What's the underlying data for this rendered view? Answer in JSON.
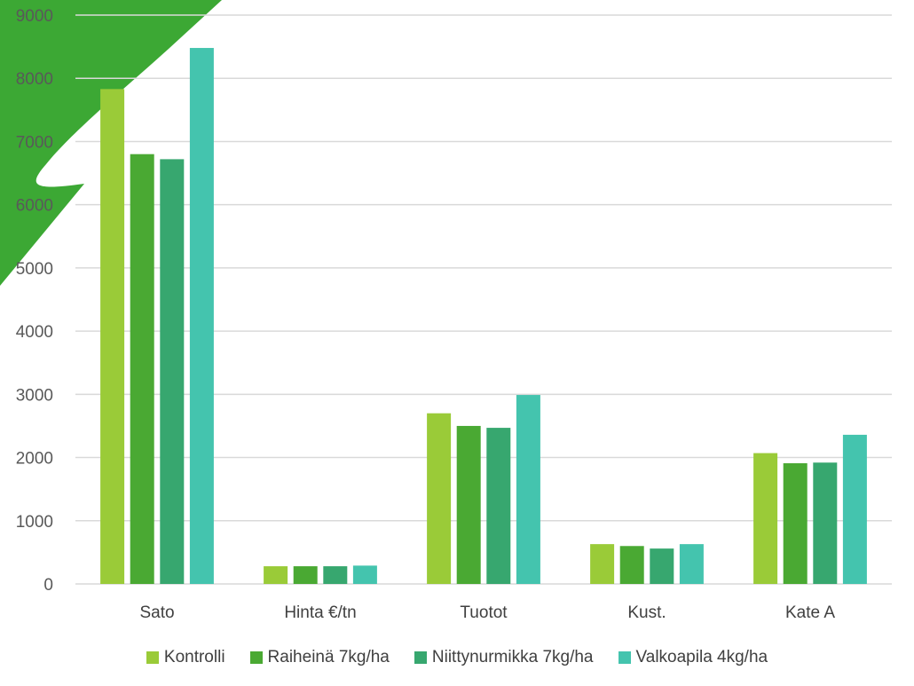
{
  "chart_data": {
    "type": "bar",
    "title": "",
    "xlabel": "",
    "ylabel": "",
    "categories": [
      "Sato",
      "Hinta €/tn",
      "Tuotot",
      "Kust.",
      "Kate A"
    ],
    "ylim": [
      0,
      9000
    ],
    "yticks": [
      0,
      1000,
      2000,
      3000,
      4000,
      5000,
      6000,
      7000,
      8000,
      9000
    ],
    "grid": true,
    "legend_position": "bottom",
    "series": [
      {
        "name": "Kontrolli",
        "color": "#9acb38",
        "values": [
          7830,
          280,
          2700,
          630,
          2070
        ]
      },
      {
        "name": "Raiheinä 7kg/ha",
        "color": "#4aa933",
        "values": [
          6800,
          280,
          2500,
          600,
          1910
        ]
      },
      {
        "name": "Niittynurmikka 7kg/ha",
        "color": "#37a76f",
        "values": [
          6720,
          280,
          2470,
          560,
          1920
        ]
      },
      {
        "name": "Valkoapila 4kg/ha",
        "color": "#44c4ae",
        "values": [
          8480,
          290,
          2990,
          630,
          2360
        ]
      }
    ]
  },
  "decoration_color": "#3ca834"
}
